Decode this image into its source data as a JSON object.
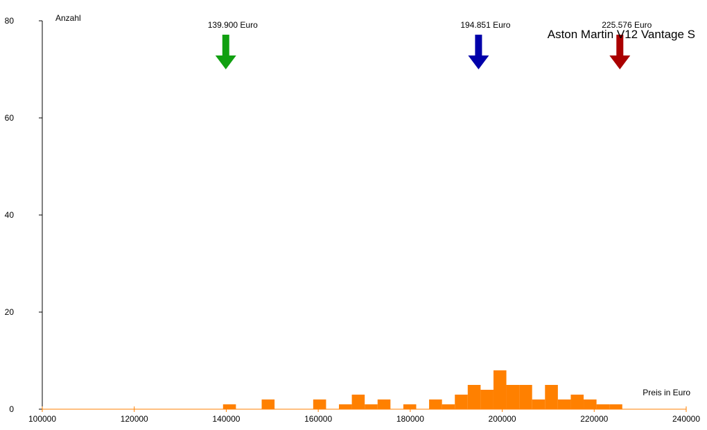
{
  "chart_data": {
    "type": "bar",
    "title": "Aston Martin V12 Vantage S",
    "xlabel": "Preis in Euro",
    "ylabel": "Anzahl",
    "xlim": [
      100000,
      240000
    ],
    "ylim": [
      0,
      80
    ],
    "xticks": [
      "100000",
      "120000",
      "140000",
      "160000",
      "180000",
      "200000",
      "220000",
      "240000"
    ],
    "yticks": [
      "0",
      "20",
      "40",
      "60",
      "80"
    ],
    "bin_width": 2800,
    "bins": [
      {
        "start": 139300,
        "count": 1
      },
      {
        "start": 147700,
        "count": 2
      },
      {
        "start": 158900,
        "count": 2
      },
      {
        "start": 164500,
        "count": 1
      },
      {
        "start": 167300,
        "count": 3
      },
      {
        "start": 170100,
        "count": 1
      },
      {
        "start": 172900,
        "count": 2
      },
      {
        "start": 178500,
        "count": 1
      },
      {
        "start": 184100,
        "count": 2
      },
      {
        "start": 186900,
        "count": 1
      },
      {
        "start": 189700,
        "count": 3
      },
      {
        "start": 192500,
        "count": 5
      },
      {
        "start": 195300,
        "count": 4
      },
      {
        "start": 198100,
        "count": 8
      },
      {
        "start": 200900,
        "count": 5
      },
      {
        "start": 203700,
        "count": 5
      },
      {
        "start": 206500,
        "count": 2
      },
      {
        "start": 209300,
        "count": 5
      },
      {
        "start": 212100,
        "count": 2
      },
      {
        "start": 214900,
        "count": 3
      },
      {
        "start": 217700,
        "count": 2
      },
      {
        "start": 220500,
        "count": 1
      },
      {
        "start": 223300,
        "count": 1
      }
    ],
    "markers": [
      {
        "value": 139900,
        "label": "139.900 Euro",
        "color": "#11a011"
      },
      {
        "value": 194851,
        "label": "194.851 Euro",
        "color": "#0000aa"
      },
      {
        "value": 225576,
        "label": "225.576 Euro",
        "color": "#aa0000"
      }
    ],
    "bar_color": "#ff8000",
    "grid": false
  }
}
